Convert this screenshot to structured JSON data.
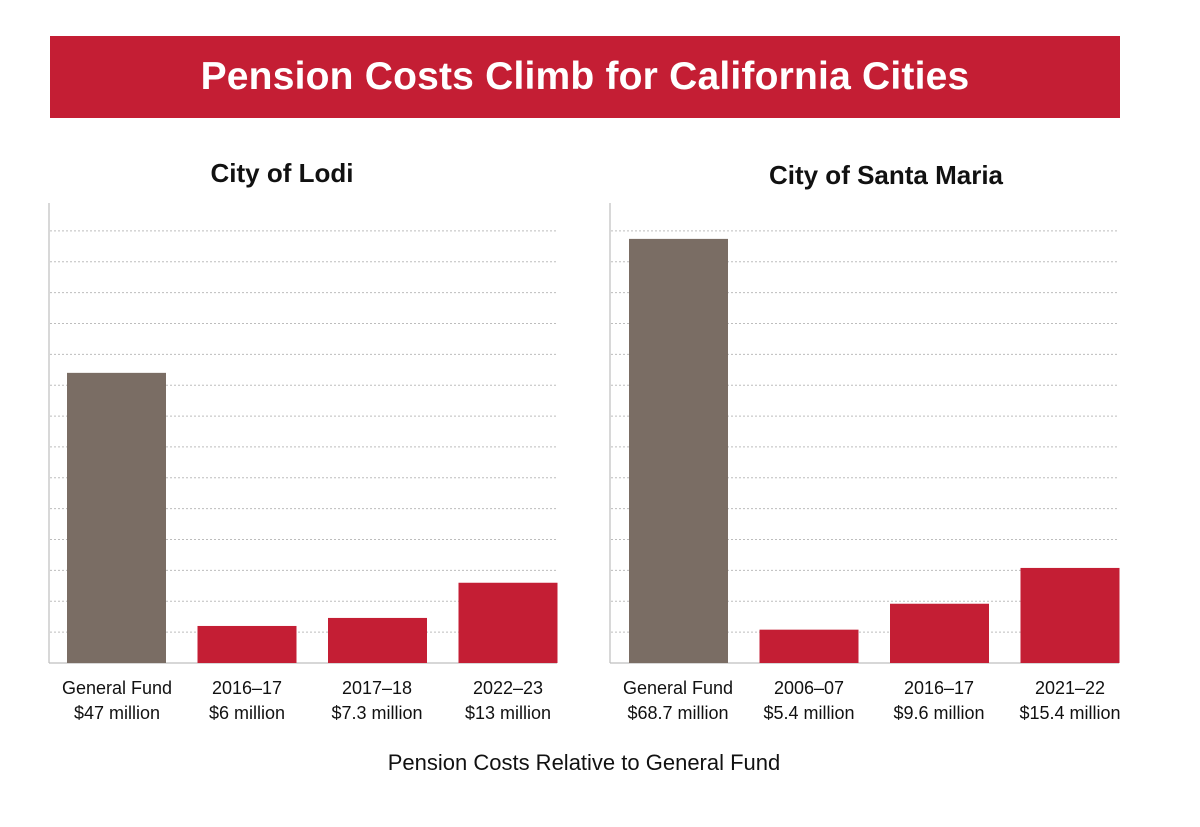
{
  "colors": {
    "banner": "#c41e34",
    "general_fund": "#7a6d64",
    "pension": "#c41e34",
    "grid": "#bdbdbd",
    "axis": "#bfbfbf"
  },
  "banner": {
    "title": "Pension Costs Climb for California Cities"
  },
  "footer": {
    "caption": "Pension Costs Relative to General Fund"
  },
  "chart_data": [
    {
      "type": "bar",
      "title": "City of Lodi",
      "xlabel": "Pension Costs Relative to General Fund",
      "ylabel": "",
      "ylim": [
        0,
        75
      ],
      "grid": true,
      "categories": [
        "General Fund",
        "2016–17",
        "2017–18",
        "2022–23"
      ],
      "value_labels": [
        "$47 million",
        "$6 million",
        "$7.3 million",
        "$13 million"
      ],
      "values": [
        47,
        6,
        7.3,
        13
      ],
      "series_colors": [
        "general_fund",
        "pension",
        "pension",
        "pension"
      ]
    },
    {
      "type": "bar",
      "title": "City of Santa Maria",
      "xlabel": "Pension Costs Relative to General Fund",
      "ylabel": "",
      "ylim": [
        0,
        75
      ],
      "grid": true,
      "categories": [
        "General Fund",
        "2006–07",
        "2016–17",
        "2021–22"
      ],
      "value_labels": [
        "$68.7 million",
        "$5.4 million",
        "$9.6 million",
        "$15.4 million"
      ],
      "values": [
        68.7,
        5.4,
        9.6,
        15.4
      ],
      "series_colors": [
        "general_fund",
        "pension",
        "pension",
        "pension"
      ]
    }
  ]
}
